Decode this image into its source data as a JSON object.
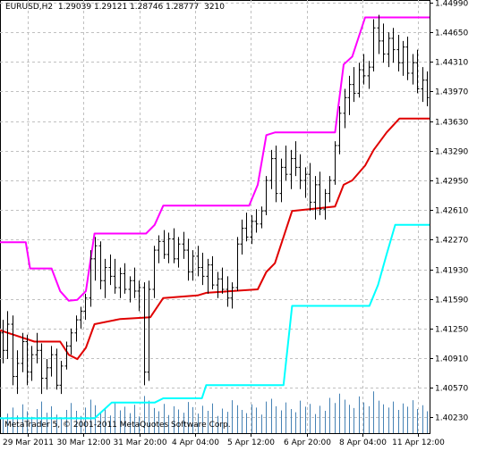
{
  "header": {
    "symbol": "EURUSD,H2",
    "open": "1.29039",
    "high": "1.29121",
    "low": "1.28746",
    "close": "1.28777",
    "volume": "3210"
  },
  "copyright": "MetaTrader 5, © 2001-2011 MetaQuotes Software Corp.",
  "colors": {
    "background": "#ffffff",
    "grid": "#c0c0c0",
    "bars": "#000000",
    "volume": "#4682b4",
    "upper_band": "#ff00ff",
    "middle_band": "#e00000",
    "lower_band": "#00ffff"
  },
  "chart_data": {
    "type": "line",
    "price_axis": {
      "ticks": [
        "1.44990",
        "1.44650",
        "1.44310",
        "1.43970",
        "1.43630",
        "1.43290",
        "1.42950",
        "1.42610",
        "1.42270",
        "1.41930",
        "1.41590",
        "1.41250",
        "1.40910",
        "1.40570",
        "1.40230"
      ],
      "range": [
        1.4005,
        1.4502
      ]
    },
    "time_axis": {
      "ticks": [
        "29 Mar 2011",
        "30 Mar 12:00",
        "31 Mar 20:00",
        "4 Apr 04:00",
        "5 Apr 12:00",
        "6 Apr 20:00",
        "8 Apr 04:00",
        "11 Apr 12:00"
      ]
    },
    "series": [
      {
        "key": "upper",
        "points": [
          [
            0,
            1.4224
          ],
          [
            6,
            1.4224
          ],
          [
            7,
            1.4194
          ],
          [
            12,
            1.4194
          ],
          [
            14,
            1.4168
          ],
          [
            16,
            1.4157
          ],
          [
            18,
            1.4158
          ],
          [
            20,
            1.4168
          ],
          [
            22,
            1.4234
          ],
          [
            34,
            1.4234
          ],
          [
            36,
            1.4244
          ],
          [
            38,
            1.4266
          ],
          [
            58,
            1.4266
          ],
          [
            60,
            1.429
          ],
          [
            62,
            1.4347
          ],
          [
            64,
            1.435
          ],
          [
            78,
            1.435
          ],
          [
            80,
            1.4428
          ],
          [
            82,
            1.4437
          ],
          [
            85,
            1.4482
          ],
          [
            100,
            1.4482
          ]
        ]
      },
      {
        "key": "middle",
        "points": [
          [
            0,
            1.4123
          ],
          [
            8,
            1.411
          ],
          [
            14,
            1.411
          ],
          [
            16,
            1.4095
          ],
          [
            18,
            1.409
          ],
          [
            20,
            1.4103
          ],
          [
            22,
            1.413
          ],
          [
            28,
            1.4136
          ],
          [
            35,
            1.4138
          ],
          [
            38,
            1.416
          ],
          [
            46,
            1.4163
          ],
          [
            48,
            1.4166
          ],
          [
            60,
            1.417
          ],
          [
            62,
            1.419
          ],
          [
            64,
            1.42
          ],
          [
            66,
            1.423
          ],
          [
            68,
            1.426
          ],
          [
            78,
            1.4265
          ],
          [
            80,
            1.429
          ],
          [
            82,
            1.4295
          ],
          [
            85,
            1.4312
          ],
          [
            87,
            1.433
          ],
          [
            90,
            1.435
          ],
          [
            93,
            1.4366
          ],
          [
            100,
            1.4366
          ]
        ]
      },
      {
        "key": "lower",
        "points": [
          [
            0,
            1.4022
          ],
          [
            22,
            1.4022
          ],
          [
            26,
            1.404
          ],
          [
            36,
            1.404
          ],
          [
            38,
            1.4045
          ],
          [
            47,
            1.4045
          ],
          [
            48,
            1.406
          ],
          [
            66,
            1.406
          ],
          [
            68,
            1.4151
          ],
          [
            86,
            1.4151
          ],
          [
            88,
            1.4175
          ],
          [
            90,
            1.421
          ],
          [
            92,
            1.4244
          ],
          [
            100,
            1.4244
          ]
        ]
      }
    ],
    "candles": [
      [
        1.412,
        1.4135,
        1.4085,
        1.41
      ],
      [
        1.41,
        1.4145,
        1.409,
        1.413
      ],
      [
        1.413,
        1.414,
        1.406,
        1.407
      ],
      [
        1.407,
        1.41,
        1.405,
        1.4085
      ],
      [
        1.4085,
        1.412,
        1.4075,
        1.411
      ],
      [
        1.411,
        1.4118,
        1.406,
        1.4075
      ],
      [
        1.4075,
        1.4105,
        1.4065,
        1.4095
      ],
      [
        1.4095,
        1.412,
        1.4085,
        1.41
      ],
      [
        1.41,
        1.4108,
        1.405,
        1.4068
      ],
      [
        1.4068,
        1.409,
        1.4055,
        1.408
      ],
      [
        1.408,
        1.4105,
        1.407,
        1.4095
      ],
      [
        1.4095,
        1.4102,
        1.4055,
        1.406
      ],
      [
        1.406,
        1.4088,
        1.405,
        1.4082
      ],
      [
        1.4082,
        1.411,
        1.4078,
        1.4105
      ],
      [
        1.4105,
        1.4125,
        1.4095,
        1.412
      ],
      [
        1.412,
        1.414,
        1.411,
        1.4135
      ],
      [
        1.4135,
        1.415,
        1.4125,
        1.4145
      ],
      [
        1.4145,
        1.4165,
        1.4135,
        1.416
      ],
      [
        1.416,
        1.4215,
        1.415,
        1.4205
      ],
      [
        1.4205,
        1.423,
        1.418,
        1.422
      ],
      [
        1.422,
        1.4225,
        1.417,
        1.418
      ],
      [
        1.418,
        1.4205,
        1.416,
        1.4195
      ],
      [
        1.4195,
        1.421,
        1.4175,
        1.4185
      ],
      [
        1.4185,
        1.4205,
        1.4165,
        1.4172
      ],
      [
        1.4172,
        1.4195,
        1.416,
        1.4188
      ],
      [
        1.4188,
        1.42,
        1.4165,
        1.417
      ],
      [
        1.417,
        1.4185,
        1.4155,
        1.418
      ],
      [
        1.418,
        1.4195,
        1.416,
        1.4168
      ],
      [
        1.4168,
        1.418,
        1.4145,
        1.4172
      ],
      [
        1.4172,
        1.4178,
        1.406,
        1.4075
      ],
      [
        1.4075,
        1.418,
        1.4065,
        1.417
      ],
      [
        1.417,
        1.422,
        1.416,
        1.4215
      ],
      [
        1.4215,
        1.4232,
        1.42,
        1.4225
      ],
      [
        1.4225,
        1.4238,
        1.4205,
        1.421
      ],
      [
        1.421,
        1.4235,
        1.42,
        1.4228
      ],
      [
        1.4228,
        1.424,
        1.42,
        1.4205
      ],
      [
        1.4205,
        1.423,
        1.4195,
        1.4222
      ],
      [
        1.4222,
        1.4236,
        1.4205,
        1.4215
      ],
      [
        1.4215,
        1.4228,
        1.418,
        1.419
      ],
      [
        1.419,
        1.4215,
        1.418,
        1.4208
      ],
      [
        1.4208,
        1.422,
        1.4185,
        1.4195
      ],
      [
        1.4195,
        1.4212,
        1.4175,
        1.4185
      ],
      [
        1.4185,
        1.4205,
        1.4165,
        1.4198
      ],
      [
        1.4198,
        1.4208,
        1.417,
        1.4175
      ],
      [
        1.4175,
        1.419,
        1.416,
        1.4182
      ],
      [
        1.4182,
        1.4195,
        1.4165,
        1.417
      ],
      [
        1.417,
        1.4185,
        1.415,
        1.416
      ],
      [
        1.416,
        1.4178,
        1.4148,
        1.4172
      ],
      [
        1.4172,
        1.423,
        1.4168,
        1.4222
      ],
      [
        1.4222,
        1.425,
        1.421,
        1.424
      ],
      [
        1.424,
        1.4258,
        1.4225,
        1.423
      ],
      [
        1.423,
        1.4255,
        1.4222,
        1.4248
      ],
      [
        1.4248,
        1.4262,
        1.4235,
        1.4245
      ],
      [
        1.4245,
        1.4265,
        1.424,
        1.426
      ],
      [
        1.426,
        1.43,
        1.4255,
        1.4295
      ],
      [
        1.4295,
        1.433,
        1.4285,
        1.432
      ],
      [
        1.432,
        1.4335,
        1.427,
        1.428
      ],
      [
        1.428,
        1.432,
        1.427,
        1.431
      ],
      [
        1.431,
        1.4335,
        1.4295,
        1.4302
      ],
      [
        1.4302,
        1.433,
        1.4285,
        1.432
      ],
      [
        1.432,
        1.434,
        1.43,
        1.431
      ],
      [
        1.431,
        1.4325,
        1.4285,
        1.4295
      ],
      [
        1.4295,
        1.431,
        1.4275,
        1.4302
      ],
      [
        1.4302,
        1.4315,
        1.426,
        1.427
      ],
      [
        1.427,
        1.43,
        1.425,
        1.429
      ],
      [
        1.429,
        1.4305,
        1.4255,
        1.4262
      ],
      [
        1.4262,
        1.4285,
        1.425,
        1.428
      ],
      [
        1.428,
        1.43,
        1.427,
        1.4295
      ],
      [
        1.4295,
        1.434,
        1.429,
        1.4335
      ],
      [
        1.4335,
        1.438,
        1.4325,
        1.4372
      ],
      [
        1.4372,
        1.44,
        1.4355,
        1.439
      ],
      [
        1.439,
        1.4415,
        1.437,
        1.4405
      ],
      [
        1.4405,
        1.4425,
        1.4385,
        1.4395
      ],
      [
        1.4395,
        1.443,
        1.439,
        1.4422
      ],
      [
        1.4422,
        1.444,
        1.4405,
        1.4415
      ],
      [
        1.4415,
        1.4432,
        1.44,
        1.4425
      ],
      [
        1.4425,
        1.448,
        1.442,
        1.447
      ],
      [
        1.447,
        1.4485,
        1.444,
        1.4455
      ],
      [
        1.4455,
        1.4475,
        1.443,
        1.444
      ],
      [
        1.444,
        1.4465,
        1.4425,
        1.4458
      ],
      [
        1.4458,
        1.447,
        1.443,
        1.4445
      ],
      [
        1.4445,
        1.4462,
        1.442,
        1.443
      ],
      [
        1.443,
        1.4455,
        1.4415,
        1.4448
      ],
      [
        1.4448,
        1.446,
        1.441,
        1.4418
      ],
      [
        1.4418,
        1.444,
        1.4405,
        1.443
      ],
      [
        1.443,
        1.4445,
        1.4395,
        1.44
      ],
      [
        1.44,
        1.4425,
        1.4385,
        1.441
      ],
      [
        1.441,
        1.442,
        1.438,
        1.439
      ]
    ],
    "volumes": [
      0.3,
      0.42,
      0.55,
      0.38,
      0.62,
      0.47,
      0.35,
      0.52,
      0.68,
      0.44,
      0.58,
      0.4,
      0.33,
      0.5,
      0.65,
      0.48,
      0.37,
      0.55,
      0.72,
      0.6,
      0.45,
      0.52,
      0.38,
      0.66,
      0.49,
      0.57,
      0.43,
      0.61,
      0.36,
      0.8,
      0.7,
      0.54,
      0.47,
      0.63,
      0.39,
      0.58,
      0.51,
      0.44,
      0.67,
      0.56,
      0.42,
      0.59,
      0.48,
      0.64,
      0.37,
      0.53,
      0.46,
      0.71,
      0.6,
      0.5,
      0.43,
      0.62,
      0.55,
      0.4,
      0.68,
      0.74,
      0.58,
      0.49,
      0.66,
      0.52,
      0.45,
      0.7,
      0.57,
      0.63,
      0.41,
      0.59,
      0.48,
      0.76,
      0.65,
      0.85,
      0.72,
      0.61,
      0.54,
      0.79,
      0.66,
      0.58,
      0.9,
      0.7,
      0.62,
      0.55,
      0.68,
      0.5,
      0.64,
      0.57,
      0.71,
      0.52,
      0.6,
      0.47
    ],
    "grid": true,
    "price_scale_position": "right",
    "time_scale_position": "bottom"
  }
}
